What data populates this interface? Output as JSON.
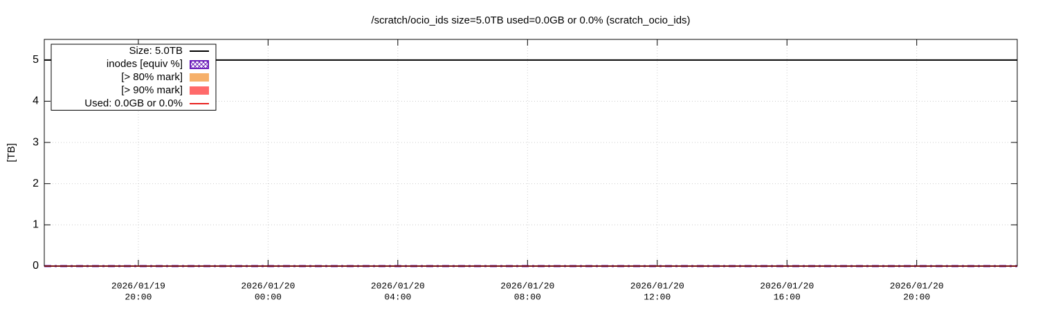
{
  "chart_data": {
    "type": "line",
    "title": "/scratch/ocio_ids size=5.0TB used=0.0GB or 0.0% (scratch_ocio_ids)",
    "y_label": "[TB]",
    "x": [
      "2026-01-19T17:06",
      "2026-01-20T23:06"
    ],
    "xlim": [
      "2026-01-19T17:06",
      "2026-01-20T23:06"
    ],
    "xticks": [
      {
        "value": "2026-01-19T20:00",
        "label": [
          "2026/01/19",
          "20:00"
        ]
      },
      {
        "value": "2026-01-20T00:00",
        "label": [
          "2026/01/20",
          "00:00"
        ]
      },
      {
        "value": "2026-01-20T04:00",
        "label": [
          "2026/01/20",
          "04:00"
        ]
      },
      {
        "value": "2026-01-20T08:00",
        "label": [
          "2026/01/20",
          "08:00"
        ]
      },
      {
        "value": "2026-01-20T12:00",
        "label": [
          "2026/01/20",
          "12:00"
        ]
      },
      {
        "value": "2026-01-20T16:00",
        "label": [
          "2026/01/20",
          "16:00"
        ]
      },
      {
        "value": "2026-01-20T20:00",
        "label": [
          "2026/01/20",
          "20:00"
        ]
      }
    ],
    "ylim": [
      0,
      5.5
    ],
    "yticks": [
      0,
      1,
      2,
      3,
      4,
      5
    ],
    "grid": true,
    "legend": "top-left",
    "series": [
      {
        "name": "Size: 5.0TB",
        "color": "#000000",
        "style": "line",
        "values": [
          5,
          5
        ]
      },
      {
        "name": "inodes [equiv %]",
        "color": "#6a1bb8",
        "style": "hatch",
        "values": [
          0,
          0
        ]
      },
      {
        "name": "[> 80% mark]",
        "color": "#f6b06a",
        "style": "area",
        "values": [
          null,
          null
        ]
      },
      {
        "name": "[> 90% mark]",
        "color": "#ff6a6a",
        "style": "area",
        "values": [
          null,
          null
        ]
      },
      {
        "name": "Used: 0.0GB or 0.0%",
        "color": "#e8201c",
        "style": "line",
        "values": [
          0,
          0
        ]
      }
    ]
  }
}
